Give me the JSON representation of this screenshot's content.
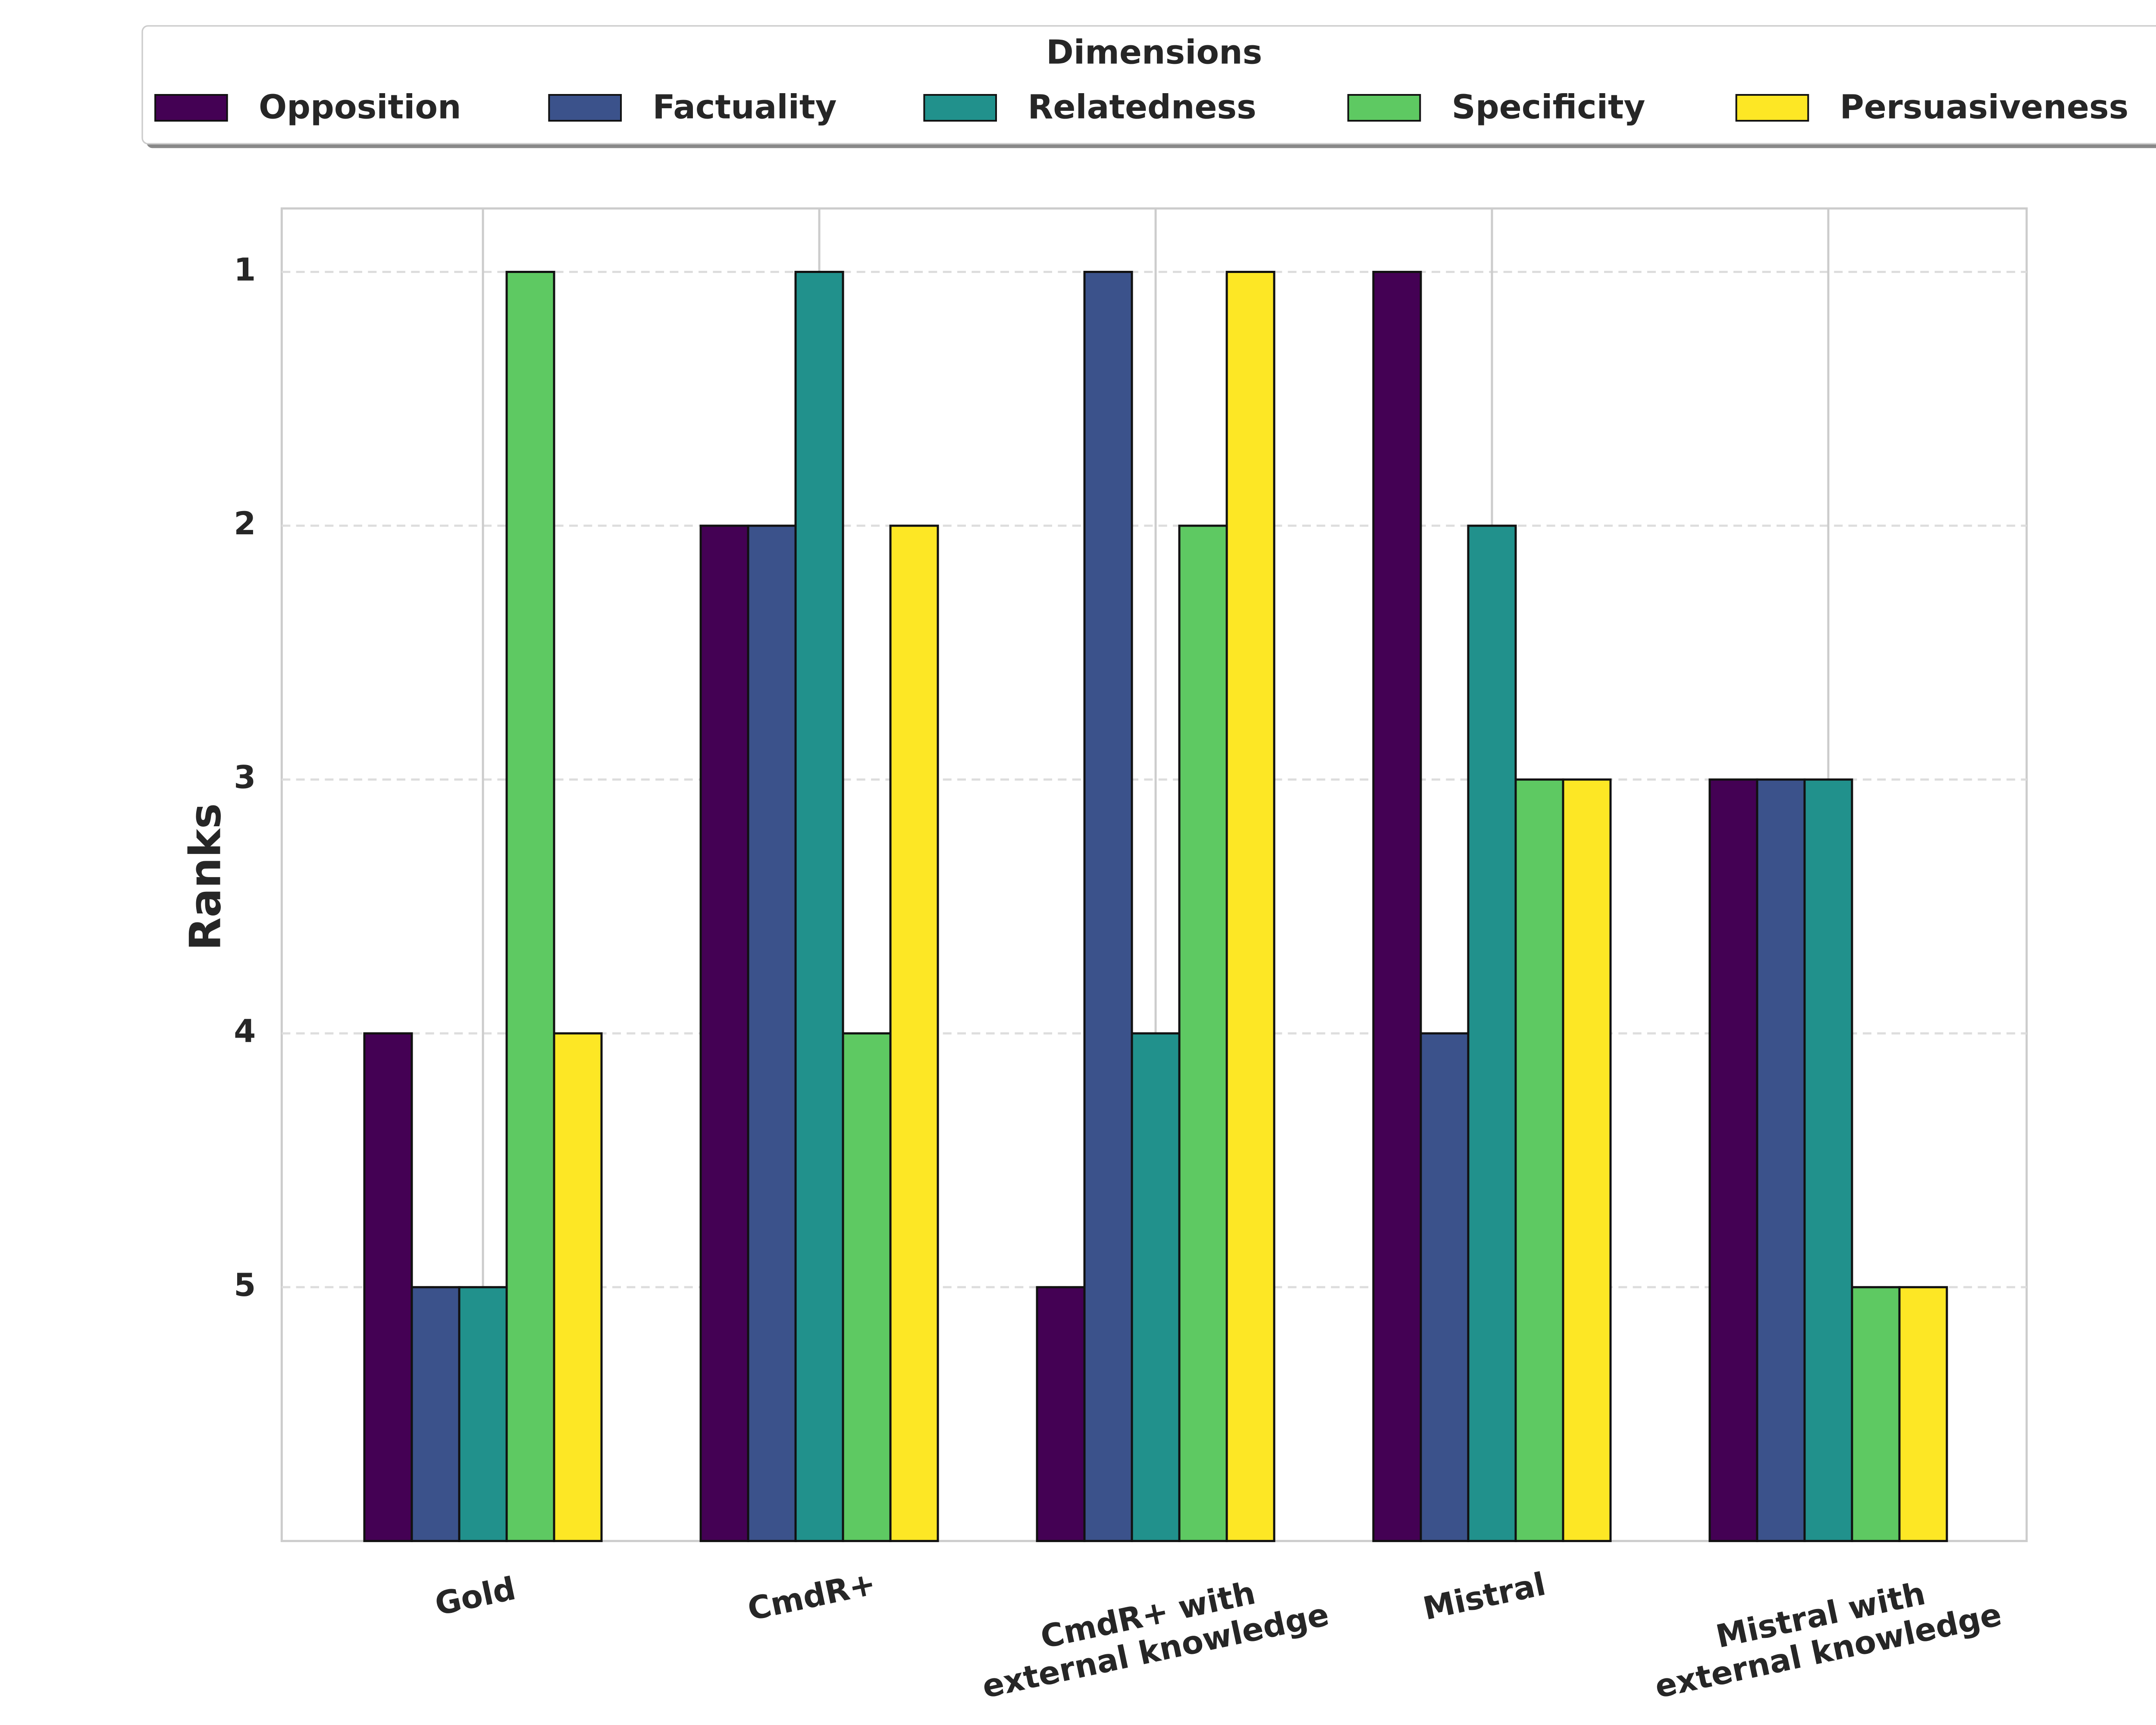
{
  "chart_data": {
    "type": "bar",
    "y_label": "Ranks",
    "legend_title": "Dimensions",
    "categories": [
      "Gold",
      "CmdR+",
      "CmdR+ with\nexternal knowledge",
      "Mistral",
      "Mistral with\nexternal knowledge"
    ],
    "series": [
      {
        "name": "Opposition",
        "color": "#440154",
        "values": [
          4,
          2,
          5,
          1,
          3
        ]
      },
      {
        "name": "Factuality",
        "color": "#3b528b",
        "values": [
          5,
          2,
          1,
          4,
          3
        ]
      },
      {
        "name": "Relatedness",
        "color": "#21918c",
        "values": [
          5,
          1,
          4,
          2,
          3
        ]
      },
      {
        "name": "Specificity",
        "color": "#5ec962",
        "values": [
          1,
          4,
          2,
          3,
          5
        ]
      },
      {
        "name": "Persuasiveness",
        "color": "#fde725",
        "values": [
          4,
          2,
          1,
          3,
          5
        ]
      }
    ],
    "ylim": [
      6,
      0.75
    ],
    "yticks": [
      1,
      2,
      3,
      4,
      5
    ],
    "grid": true,
    "legend": "top"
  }
}
